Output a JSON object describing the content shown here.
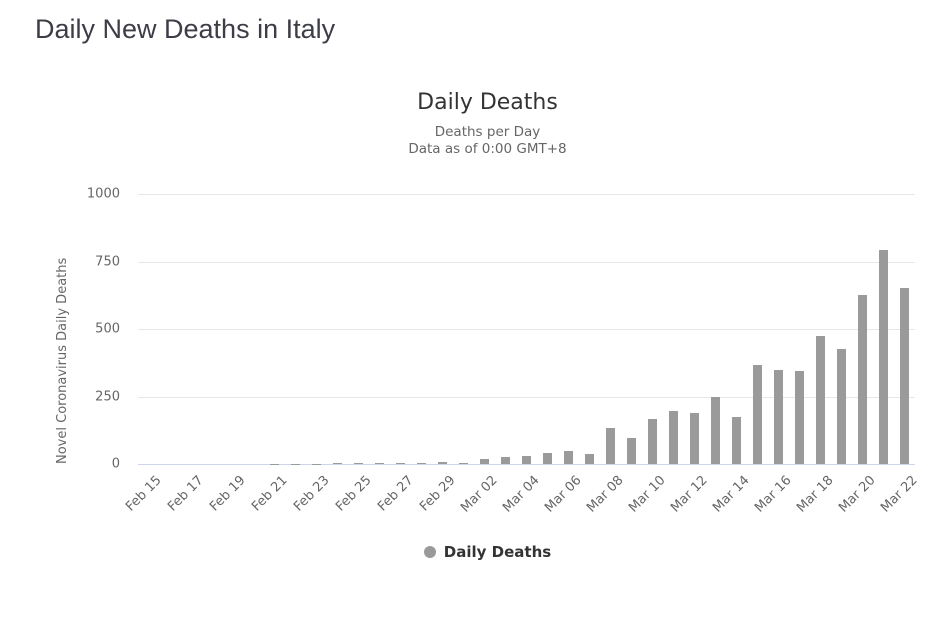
{
  "page": {
    "title": "Daily New Deaths in Italy"
  },
  "chart": {
    "title": "Daily Deaths",
    "subtitle_line1": "Deaths per Day",
    "subtitle_line2": "Data as of 0:00 GMT+8",
    "y_axis_title": "Novel Coronavirus Daily Deaths",
    "legend_label": "Daily Deaths",
    "colors": {
      "bar": "#9a9a9a",
      "gridline": "#e6e6e6",
      "x_axis_line": "#ccd6eb",
      "title_text": "#333333",
      "subtitle_text": "#666666",
      "tick_text": "#666666",
      "page_title_text": "#3d3d47"
    }
  },
  "chart_data": {
    "type": "bar",
    "title": "Daily Deaths",
    "subtitle": "Deaths per Day — Data as of 0:00 GMT+8",
    "xlabel": "",
    "ylabel": "Novel Coronavirus Daily Deaths",
    "ylim": [
      0,
      1000
    ],
    "yticks": [
      0,
      250,
      500,
      750,
      1000
    ],
    "grid": true,
    "legend_position": "bottom",
    "legend_entries": [
      "Daily Deaths"
    ],
    "categories": [
      "Feb 15",
      "Feb 16",
      "Feb 17",
      "Feb 18",
      "Feb 19",
      "Feb 20",
      "Feb 21",
      "Feb 22",
      "Feb 23",
      "Feb 24",
      "Feb 25",
      "Feb 26",
      "Feb 27",
      "Feb 28",
      "Feb 29",
      "Mar 01",
      "Mar 02",
      "Mar 03",
      "Mar 04",
      "Mar 05",
      "Mar 06",
      "Mar 07",
      "Mar 08",
      "Mar 09",
      "Mar 10",
      "Mar 11",
      "Mar 12",
      "Mar 13",
      "Mar 14",
      "Mar 15",
      "Mar 16",
      "Mar 17",
      "Mar 18",
      "Mar 19",
      "Mar 20",
      "Mar 21",
      "Mar 22"
    ],
    "values": [
      0,
      0,
      0,
      0,
      0,
      0,
      1,
      1,
      1,
      4,
      4,
      2,
      5,
      4,
      8,
      5,
      18,
      27,
      28,
      41,
      49,
      36,
      133,
      97,
      168,
      196,
      189,
      250,
      175,
      368,
      349,
      345,
      475,
      427,
      627,
      793,
      651
    ],
    "xtick_labels": [
      "Feb 15",
      "Feb 17",
      "Feb 19",
      "Feb 21",
      "Feb 23",
      "Feb 25",
      "Feb 27",
      "Feb 29",
      "Mar 02",
      "Mar 04",
      "Mar 06",
      "Mar 08",
      "Mar 10",
      "Mar 12",
      "Mar 14",
      "Mar 16",
      "Mar 18",
      "Mar 20",
      "Mar 22"
    ],
    "xtick_every": 2
  }
}
